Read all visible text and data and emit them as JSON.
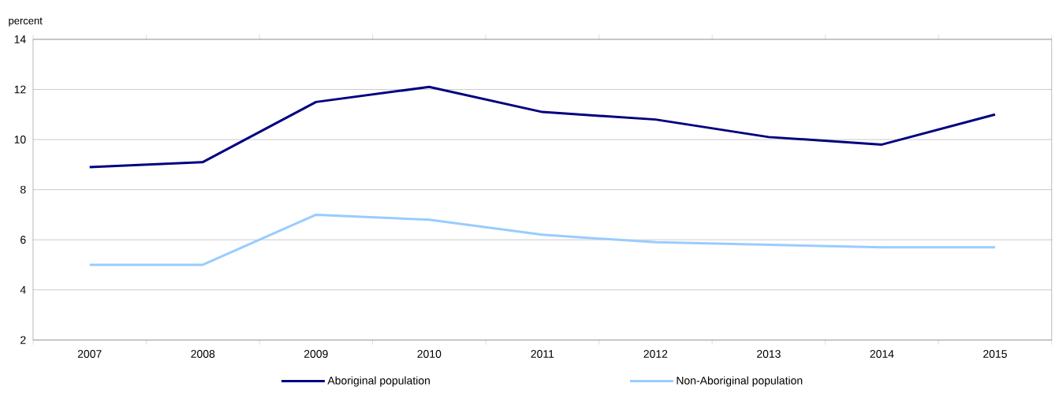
{
  "chart_data": {
    "type": "line",
    "ylabel": "percent",
    "categories": [
      "2007",
      "2008",
      "2009",
      "2010",
      "2011",
      "2012",
      "2013",
      "2014",
      "2015"
    ],
    "series": [
      {
        "name": "Aboriginal population",
        "color": "#000080",
        "values": [
          8.9,
          9.1,
          11.5,
          12.1,
          11.1,
          10.8,
          10.1,
          9.8,
          11.0
        ]
      },
      {
        "name": "Non-Aboriginal population",
        "color": "#99ccff",
        "values": [
          5.0,
          5.0,
          7.0,
          6.8,
          6.2,
          5.9,
          5.8,
          5.7,
          5.7
        ]
      }
    ],
    "ylim": [
      2,
      14
    ],
    "yticks": [
      2,
      4,
      6,
      8,
      10,
      12,
      14
    ],
    "grid": "y",
    "legend": "bottom",
    "marker": "none",
    "line_style": "solid"
  }
}
